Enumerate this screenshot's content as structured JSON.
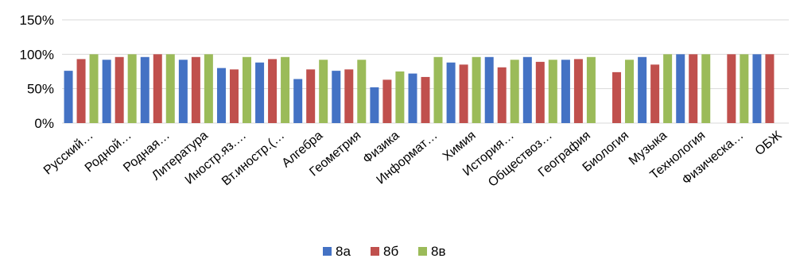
{
  "chart_data": {
    "type": "bar",
    "categories": [
      "Русский…",
      "Родной…",
      "Родная…",
      "Литература",
      "Иностр.яз.…",
      "Вт.иностр.(…",
      "Алгебра",
      "Геометрия",
      "Физика",
      "Информат…",
      "Химия",
      "История…",
      "Обществоз…",
      "География",
      "Биология",
      "Музыка",
      "Технология",
      "Физическа…",
      "ОБЖ"
    ],
    "series": [
      {
        "name": "8а",
        "color": "#4472C4",
        "values": [
          76,
          92,
          96,
          92,
          80,
          88,
          64,
          76,
          52,
          72,
          88,
          96,
          96,
          92,
          null,
          96,
          100,
          null,
          100
        ]
      },
      {
        "name": "8б",
        "color": "#C0504D",
        "values": [
          93,
          96,
          100,
          96,
          78,
          93,
          78,
          78,
          63,
          67,
          85,
          81,
          89,
          93,
          74,
          85,
          100,
          100,
          100
        ]
      },
      {
        "name": "8в",
        "color": "#9BBB59",
        "values": [
          100,
          100,
          100,
          100,
          96,
          96,
          92,
          92,
          75,
          96,
          96,
          92,
          92,
          96,
          92,
          100,
          100,
          100,
          null
        ]
      }
    ],
    "y_ticks": [
      "0%",
      "50%",
      "100%",
      "150%"
    ],
    "y_tick_values": [
      0,
      50,
      100,
      150
    ],
    "ylim": [
      0,
      150
    ],
    "grid": true,
    "legend_position": "bottom"
  }
}
